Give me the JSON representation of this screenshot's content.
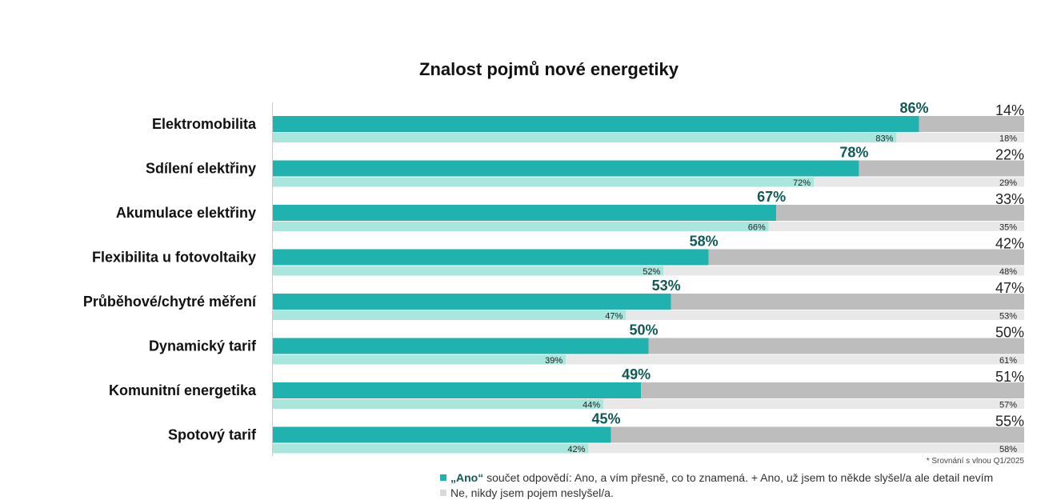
{
  "colors": {
    "yes_current": "#20b2ae",
    "yes_previous": "#a8e6de",
    "no_current": "#bdbdbd",
    "no_previous": "#e8e8e8",
    "yes_label": "#0f5a57",
    "text": "#111111"
  },
  "legend": {
    "yes_bold": "„Ano“",
    "yes_rest": " součet odpovědí: Ano, a vím přesně, co to znamená. + Ano, už jsem to někde slyšel/a ale detail nevím",
    "no": "Ne, nikdy jsem pojem neslyšel/a."
  },
  "footnote": "* Srovnání s vlnou Q1/2025",
  "chart_data": {
    "type": "bar",
    "orientation": "horizontal",
    "stacked": true,
    "title": "Znalost pojmů nové energetiky",
    "xlim": [
      0,
      100
    ],
    "grid": false,
    "legend_position": "bottom-right",
    "categories": [
      "Elektromobilita",
      "Sdílení elektřiny",
      "Akumulace elektřiny",
      "Flexibilita u fotovoltaiky",
      "Průběhové/chytré měření",
      "Dynamický tarif",
      "Komunitní energetika",
      "Spotový tarif"
    ],
    "series": [
      {
        "name": "„Ano“",
        "values": [
          86,
          78,
          67,
          58,
          53,
          50,
          49,
          45
        ]
      },
      {
        "name": "Ne, nikdy jsem pojem neslyšel/a.",
        "values": [
          14,
          22,
          33,
          42,
          47,
          50,
          51,
          55
        ]
      }
    ],
    "comparison_series": [
      {
        "values": [
          83,
          72,
          66,
          52,
          47,
          39,
          44,
          42
        ]
      },
      {
        "values": [
          18,
          29,
          35,
          48,
          53,
          61,
          57,
          58
        ]
      }
    ],
    "current_labels_yes": [
      "86%",
      "78%",
      "67%",
      "58%",
      "53%",
      "50%",
      "49%",
      "45%"
    ],
    "current_labels_no": [
      "14%",
      "22%",
      "33%",
      "42%",
      "47%",
      "50%",
      "51%",
      "55%"
    ],
    "previous_labels_yes": [
      "83%",
      "72%",
      "66%",
      "52%",
      "47%",
      "39%",
      "44%",
      "42%"
    ],
    "previous_labels_no": [
      "18%",
      "29%",
      "35%",
      "48%",
      "53%",
      "61%",
      "57%",
      "58%"
    ]
  }
}
